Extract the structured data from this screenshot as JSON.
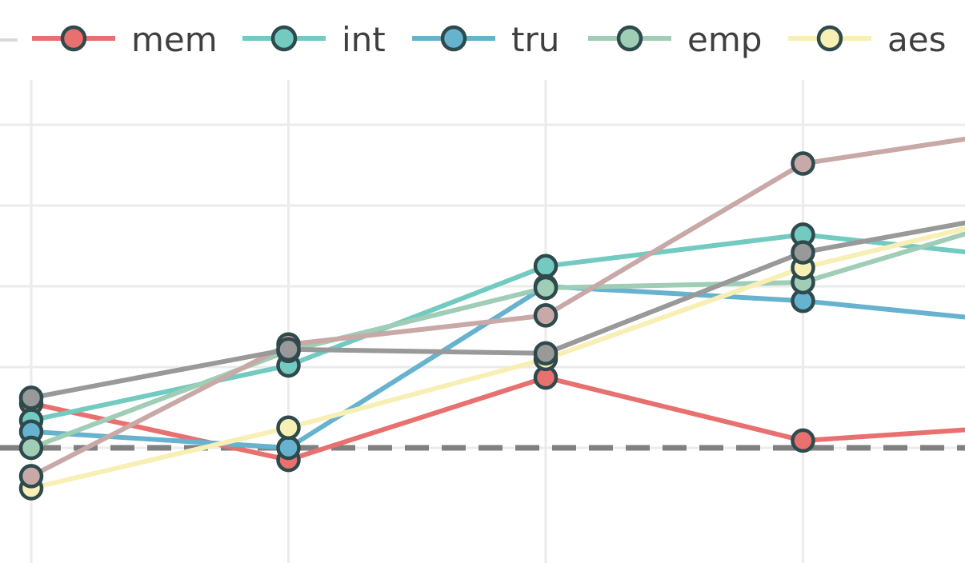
{
  "chart_data": {
    "type": "line",
    "title": "",
    "xlabel": "",
    "ylabel": "",
    "x": [
      0,
      1,
      2,
      3,
      4
    ],
    "xlim": [
      0,
      3.6
    ],
    "ylim": [
      -0.5,
      4
    ],
    "grid": true,
    "legend_position": "top",
    "reference_line": {
      "y": 0,
      "style": "dashed",
      "color": "#808080"
    },
    "series": [
      {
        "name": "mem",
        "color": "#e8706f",
        "values": [
          0.55,
          -0.15,
          0.87,
          0.09,
          0.3
        ]
      },
      {
        "name": "int",
        "color": "#72cac1",
        "values": [
          0.34,
          1.02,
          2.25,
          2.64,
          2.3
        ]
      },
      {
        "name": "tru",
        "color": "#66b2cf",
        "values": [
          0.2,
          0.0,
          2.0,
          1.82,
          1.5
        ]
      },
      {
        "name": "emp",
        "color": "#9fcdb6",
        "values": [
          0.0,
          1.2,
          1.98,
          2.05,
          3.0
        ]
      },
      {
        "name": "aes",
        "color": "#f8efb4",
        "values": [
          -0.5,
          0.25,
          1.1,
          2.23,
          3.0
        ]
      },
      {
        "color": "#c9a8a8",
        "values": [
          -0.35,
          1.28,
          1.64,
          3.52,
          4.0
        ]
      },
      {
        "color": "#999999",
        "values": [
          0.62,
          1.22,
          1.17,
          2.42,
          3.0
        ]
      }
    ]
  }
}
